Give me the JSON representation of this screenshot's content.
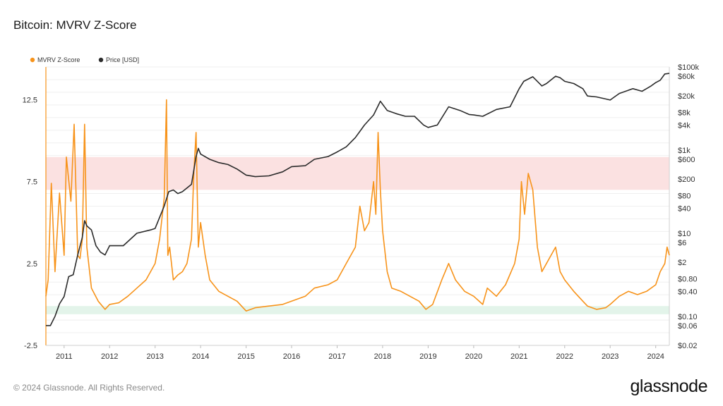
{
  "title": "Bitcoin: MVRV Z-Score",
  "footer": "© 2024 Glassnode. All Rights Reserved.",
  "brand": "glassnode",
  "colors": {
    "zscore": "#f7931a",
    "price": "#2b2b2b",
    "red_band": "#fbe1e1",
    "green_band": "#e3f4ea"
  },
  "chart_data": {
    "type": "line",
    "legend": [
      {
        "name": "MVRV Z-Score",
        "color": "#f7931a"
      },
      {
        "name": "Price [USD]",
        "color": "#2b2b2b"
      }
    ],
    "legend_position": "top-left",
    "grid": true,
    "x_ticks": [
      "2011",
      "2012",
      "2013",
      "2014",
      "2015",
      "2016",
      "2017",
      "2018",
      "2019",
      "2020",
      "2021",
      "2022",
      "2023",
      "2024"
    ],
    "xlim": [
      2010.6,
      2024.3
    ],
    "left_axis": {
      "ticks": [
        "12.5",
        "7.5",
        "2.5",
        "-2.5"
      ],
      "tick_values": [
        12.5,
        7.5,
        2.5,
        -2.5
      ],
      "ylim": [
        -2.5,
        14.5
      ]
    },
    "right_axis": {
      "scale": "log",
      "ticks": [
        "$100k",
        "$60k",
        "$20k",
        "$8k",
        "$4k",
        "$1k",
        "$600",
        "$200",
        "$80",
        "$40",
        "$10",
        "$6",
        "$2",
        "$0.80",
        "$0.40",
        "$0.10",
        "$0.06",
        "$0.02"
      ],
      "tick_values": [
        100000,
        60000,
        20000,
        8000,
        4000,
        1000,
        600,
        200,
        80,
        40,
        10,
        6,
        2,
        0.8,
        0.4,
        0.1,
        0.06,
        0.02
      ],
      "ylim": [
        0.02,
        100000
      ]
    },
    "bands": [
      {
        "axis": "left",
        "from": 7.0,
        "to": 9.0,
        "color": "#fbe1e1"
      },
      {
        "axis": "left",
        "from": -0.1,
        "to": -0.6,
        "color": "#e3f4ea"
      }
    ],
    "series": [
      {
        "name": "MVRV Z-Score",
        "axis": "left",
        "x": [
          2010.6,
          2010.65,
          2010.72,
          2010.8,
          2010.9,
          2011.0,
          2011.05,
          2011.15,
          2011.22,
          2011.3,
          2011.35,
          2011.4,
          2011.45,
          2011.5,
          2011.6,
          2011.75,
          2011.9,
          2012.0,
          2012.2,
          2012.4,
          2012.6,
          2012.8,
          2013.0,
          2013.1,
          2013.2,
          2013.25,
          2013.28,
          2013.32,
          2013.4,
          2013.5,
          2013.6,
          2013.7,
          2013.8,
          2013.85,
          2013.9,
          2013.95,
          2014.0,
          2014.1,
          2014.2,
          2014.4,
          2014.6,
          2014.8,
          2015.0,
          2015.2,
          2015.5,
          2015.8,
          2016.0,
          2016.3,
          2016.5,
          2016.8,
          2017.0,
          2017.2,
          2017.4,
          2017.5,
          2017.6,
          2017.7,
          2017.8,
          2017.85,
          2017.9,
          2017.95,
          2018.0,
          2018.1,
          2018.2,
          2018.4,
          2018.6,
          2018.8,
          2018.95,
          2019.1,
          2019.3,
          2019.45,
          2019.6,
          2019.8,
          2020.0,
          2020.2,
          2020.3,
          2020.5,
          2020.7,
          2020.9,
          2021.0,
          2021.05,
          2021.12,
          2021.2,
          2021.3,
          2021.4,
          2021.5,
          2021.6,
          2021.7,
          2021.8,
          2021.9,
          2022.0,
          2022.2,
          2022.4,
          2022.5,
          2022.7,
          2022.9,
          2023.0,
          2023.2,
          2023.4,
          2023.6,
          2023.8,
          2024.0,
          2024.1,
          2024.2,
          2024.25,
          2024.3
        ],
        "values": [
          0.5,
          1.5,
          7.4,
          2.0,
          6.8,
          3.0,
          9.0,
          6.3,
          11.0,
          3.0,
          2.8,
          4.0,
          11.0,
          3.5,
          1.0,
          0.2,
          -0.3,
          0.0,
          0.1,
          0.5,
          1.0,
          1.5,
          2.5,
          4.0,
          6.5,
          12.5,
          3.0,
          3.5,
          1.5,
          1.8,
          2.0,
          2.5,
          4.0,
          8.0,
          10.5,
          3.5,
          5.0,
          3.0,
          1.5,
          0.8,
          0.5,
          0.2,
          -0.4,
          -0.2,
          -0.1,
          0.0,
          0.2,
          0.5,
          1.0,
          1.2,
          1.5,
          2.5,
          3.5,
          6.0,
          4.5,
          5.0,
          7.5,
          5.5,
          10.5,
          7.0,
          4.5,
          2.0,
          1.0,
          0.8,
          0.5,
          0.2,
          -0.3,
          0.0,
          1.5,
          2.5,
          1.5,
          0.8,
          0.5,
          0.0,
          1.0,
          0.5,
          1.2,
          2.5,
          4.0,
          7.5,
          5.5,
          8.0,
          7.0,
          3.5,
          2.0,
          2.5,
          3.0,
          3.5,
          2.0,
          1.5,
          0.8,
          0.2,
          -0.1,
          -0.3,
          -0.2,
          0.0,
          0.5,
          0.8,
          0.6,
          0.8,
          1.2,
          2.0,
          2.5,
          3.5,
          3.0
        ]
      },
      {
        "name": "Price [USD]",
        "axis": "right",
        "x": [
          2010.6,
          2010.7,
          2010.8,
          2010.9,
          2011.0,
          2011.1,
          2011.2,
          2011.3,
          2011.4,
          2011.45,
          2011.5,
          2011.6,
          2011.7,
          2011.8,
          2011.9,
          2012.0,
          2012.3,
          2012.6,
          2012.9,
          2013.0,
          2013.2,
          2013.3,
          2013.4,
          2013.5,
          2013.6,
          2013.8,
          2013.9,
          2013.95,
          2014.0,
          2014.2,
          2014.4,
          2014.6,
          2014.8,
          2015.0,
          2015.2,
          2015.5,
          2015.8,
          2016.0,
          2016.3,
          2016.5,
          2016.8,
          2017.0,
          2017.2,
          2017.4,
          2017.6,
          2017.8,
          2017.95,
          2018.1,
          2018.3,
          2018.5,
          2018.7,
          2018.9,
          2019.0,
          2019.2,
          2019.45,
          2019.7,
          2019.9,
          2020.0,
          2020.2,
          2020.5,
          2020.8,
          2021.0,
          2021.1,
          2021.3,
          2021.5,
          2021.6,
          2021.8,
          2021.9,
          2022.0,
          2022.2,
          2022.4,
          2022.5,
          2022.7,
          2022.9,
          2023.0,
          2023.2,
          2023.5,
          2023.7,
          2023.9,
          2024.0,
          2024.1,
          2024.2,
          2024.3
        ],
        "values": [
          0.06,
          0.06,
          0.1,
          0.2,
          0.3,
          0.9,
          1.0,
          3.0,
          8.0,
          20.0,
          15.0,
          12.0,
          5.0,
          3.5,
          3.0,
          5.0,
          5.0,
          10.0,
          12.0,
          13.0,
          45.0,
          100.0,
          110.0,
          90.0,
          100.0,
          150.0,
          700.0,
          1100.0,
          800.0,
          600.0,
          500.0,
          450.0,
          350.0,
          250.0,
          230.0,
          240.0,
          300.0,
          400.0,
          420.0,
          600.0,
          700.0,
          900.0,
          1200.0,
          2000.0,
          4000.0,
          7000.0,
          15000.0,
          9000.0,
          7500.0,
          6500.0,
          6500.0,
          4000.0,
          3500.0,
          4000.0,
          11000.0,
          9000.0,
          7200.0,
          7000.0,
          6500.0,
          9500.0,
          11000.0,
          30000.0,
          45000.0,
          58000.0,
          35000.0,
          40000.0,
          60000.0,
          55000.0,
          45000.0,
          40000.0,
          30000.0,
          20000.0,
          19000.0,
          17000.0,
          16000.0,
          23000.0,
          30000.0,
          26000.0,
          35000.0,
          42000.0,
          48000.0,
          68000.0,
          70000.0
        ]
      }
    ]
  }
}
